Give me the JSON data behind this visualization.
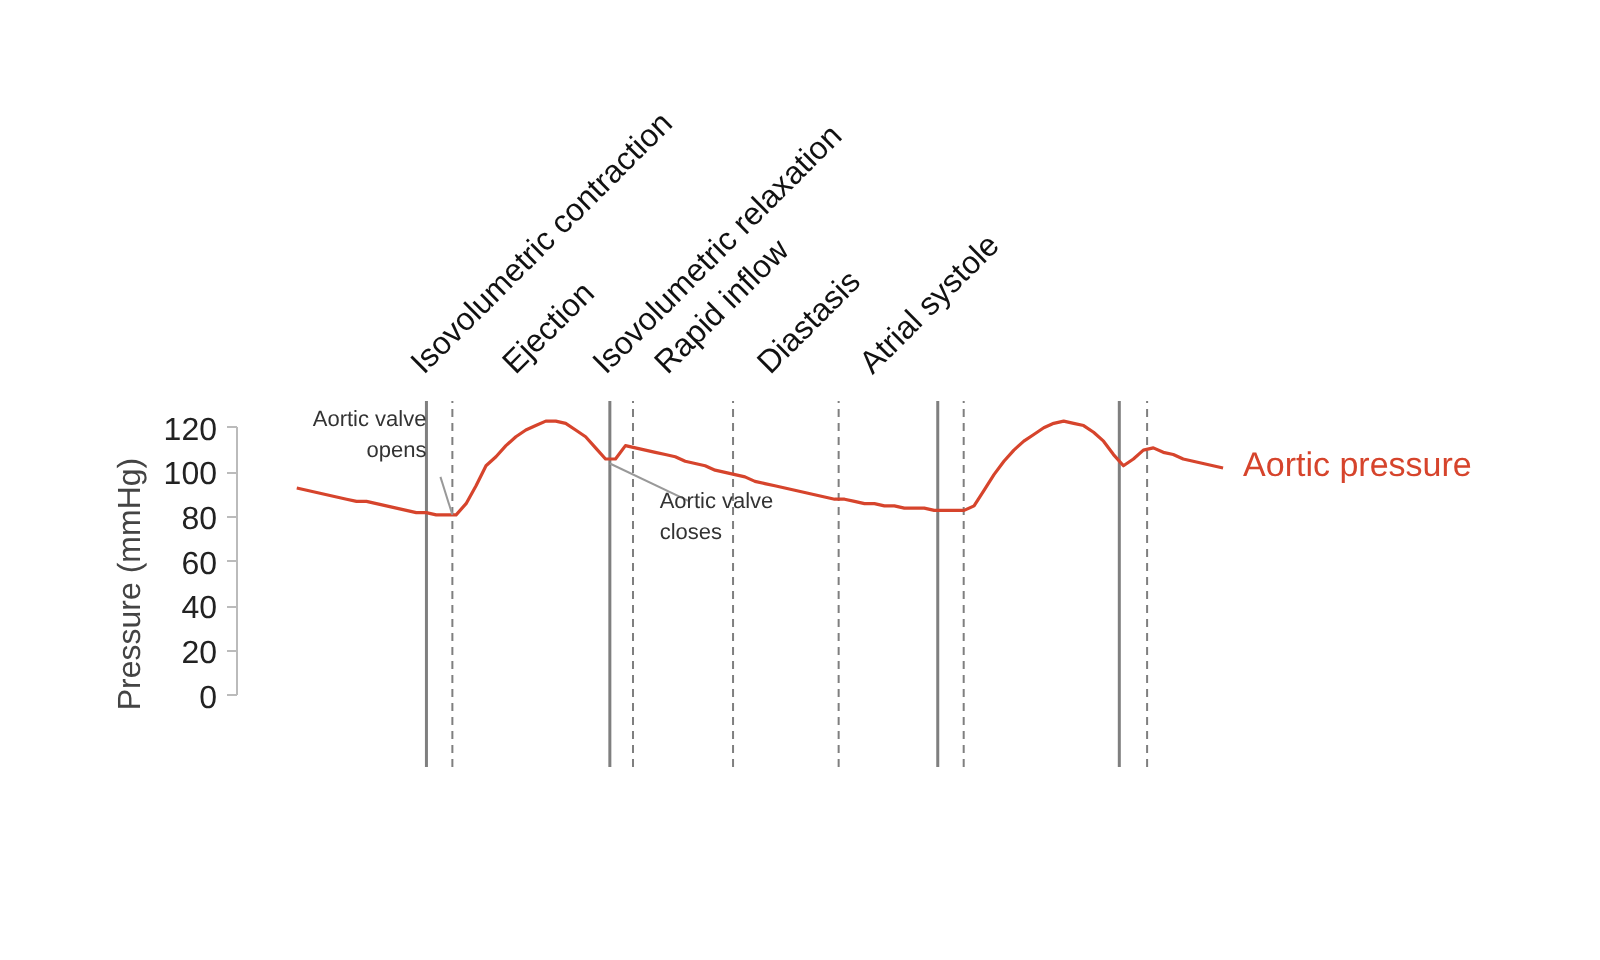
{
  "chart_data": {
    "type": "line",
    "ylabel": "Pressure (mmHg)",
    "categories": [
      null,
      null,
      null,
      null,
      null,
      null,
      null,
      null,
      null,
      null,
      null,
      null,
      null,
      null,
      null,
      null,
      null,
      null,
      null,
      null,
      null,
      null,
      null,
      null,
      null,
      null,
      null,
      null,
      null,
      null,
      null,
      null,
      null,
      null,
      null,
      null,
      null,
      null,
      null,
      null,
      null,
      null,
      null,
      null,
      null,
      null,
      null,
      null,
      null,
      null,
      null,
      null,
      null,
      null,
      null,
      null,
      null,
      null,
      null,
      null,
      null,
      null,
      null,
      null,
      null,
      null,
      null,
      null,
      null,
      null,
      null,
      null,
      null,
      null,
      null,
      null,
      null,
      null,
      null,
      null,
      null,
      null,
      null,
      null,
      null,
      null,
      null,
      null,
      null,
      null,
      null,
      null,
      null,
      null
    ],
    "series": [
      {
        "name": "Aortic pressure",
        "color": "#d6442c",
        "values": [
          93,
          92,
          91,
          90,
          89,
          88,
          87,
          87,
          86,
          85,
          84,
          83,
          82,
          82,
          81,
          81,
          81,
          86,
          94,
          103,
          107,
          112,
          116,
          119,
          121,
          123,
          123,
          122,
          119,
          116,
          111,
          106,
          106,
          112,
          111,
          110,
          109,
          108,
          107,
          105,
          104,
          103,
          101,
          100,
          99,
          98,
          96,
          95,
          94,
          93,
          92,
          91,
          90,
          89,
          88,
          88,
          87,
          86,
          86,
          85,
          85,
          84,
          84,
          84,
          83,
          83,
          83,
          83,
          85,
          92,
          99,
          105,
          110,
          114,
          117,
          120,
          122,
          123,
          122,
          121,
          118,
          114,
          108,
          103,
          106,
          110,
          111,
          109,
          108,
          106,
          105,
          104,
          103,
          102
        ]
      }
    ],
    "ylim": [
      -32,
      132
    ],
    "yticks": [
      0,
      20,
      40,
      60,
      80,
      100,
      120
    ],
    "tick_labels": "y",
    "grid": false,
    "marker": "none",
    "line_style": "solid",
    "annotations": [
      "Isovolumetric contraction",
      "Ejection",
      "Isovolumetric relaxation",
      "Rapid inflow",
      "Diastasis",
      "Atrial systole",
      "Aortic valve\nopens",
      "Aortic valve\ncloses"
    ]
  }
}
